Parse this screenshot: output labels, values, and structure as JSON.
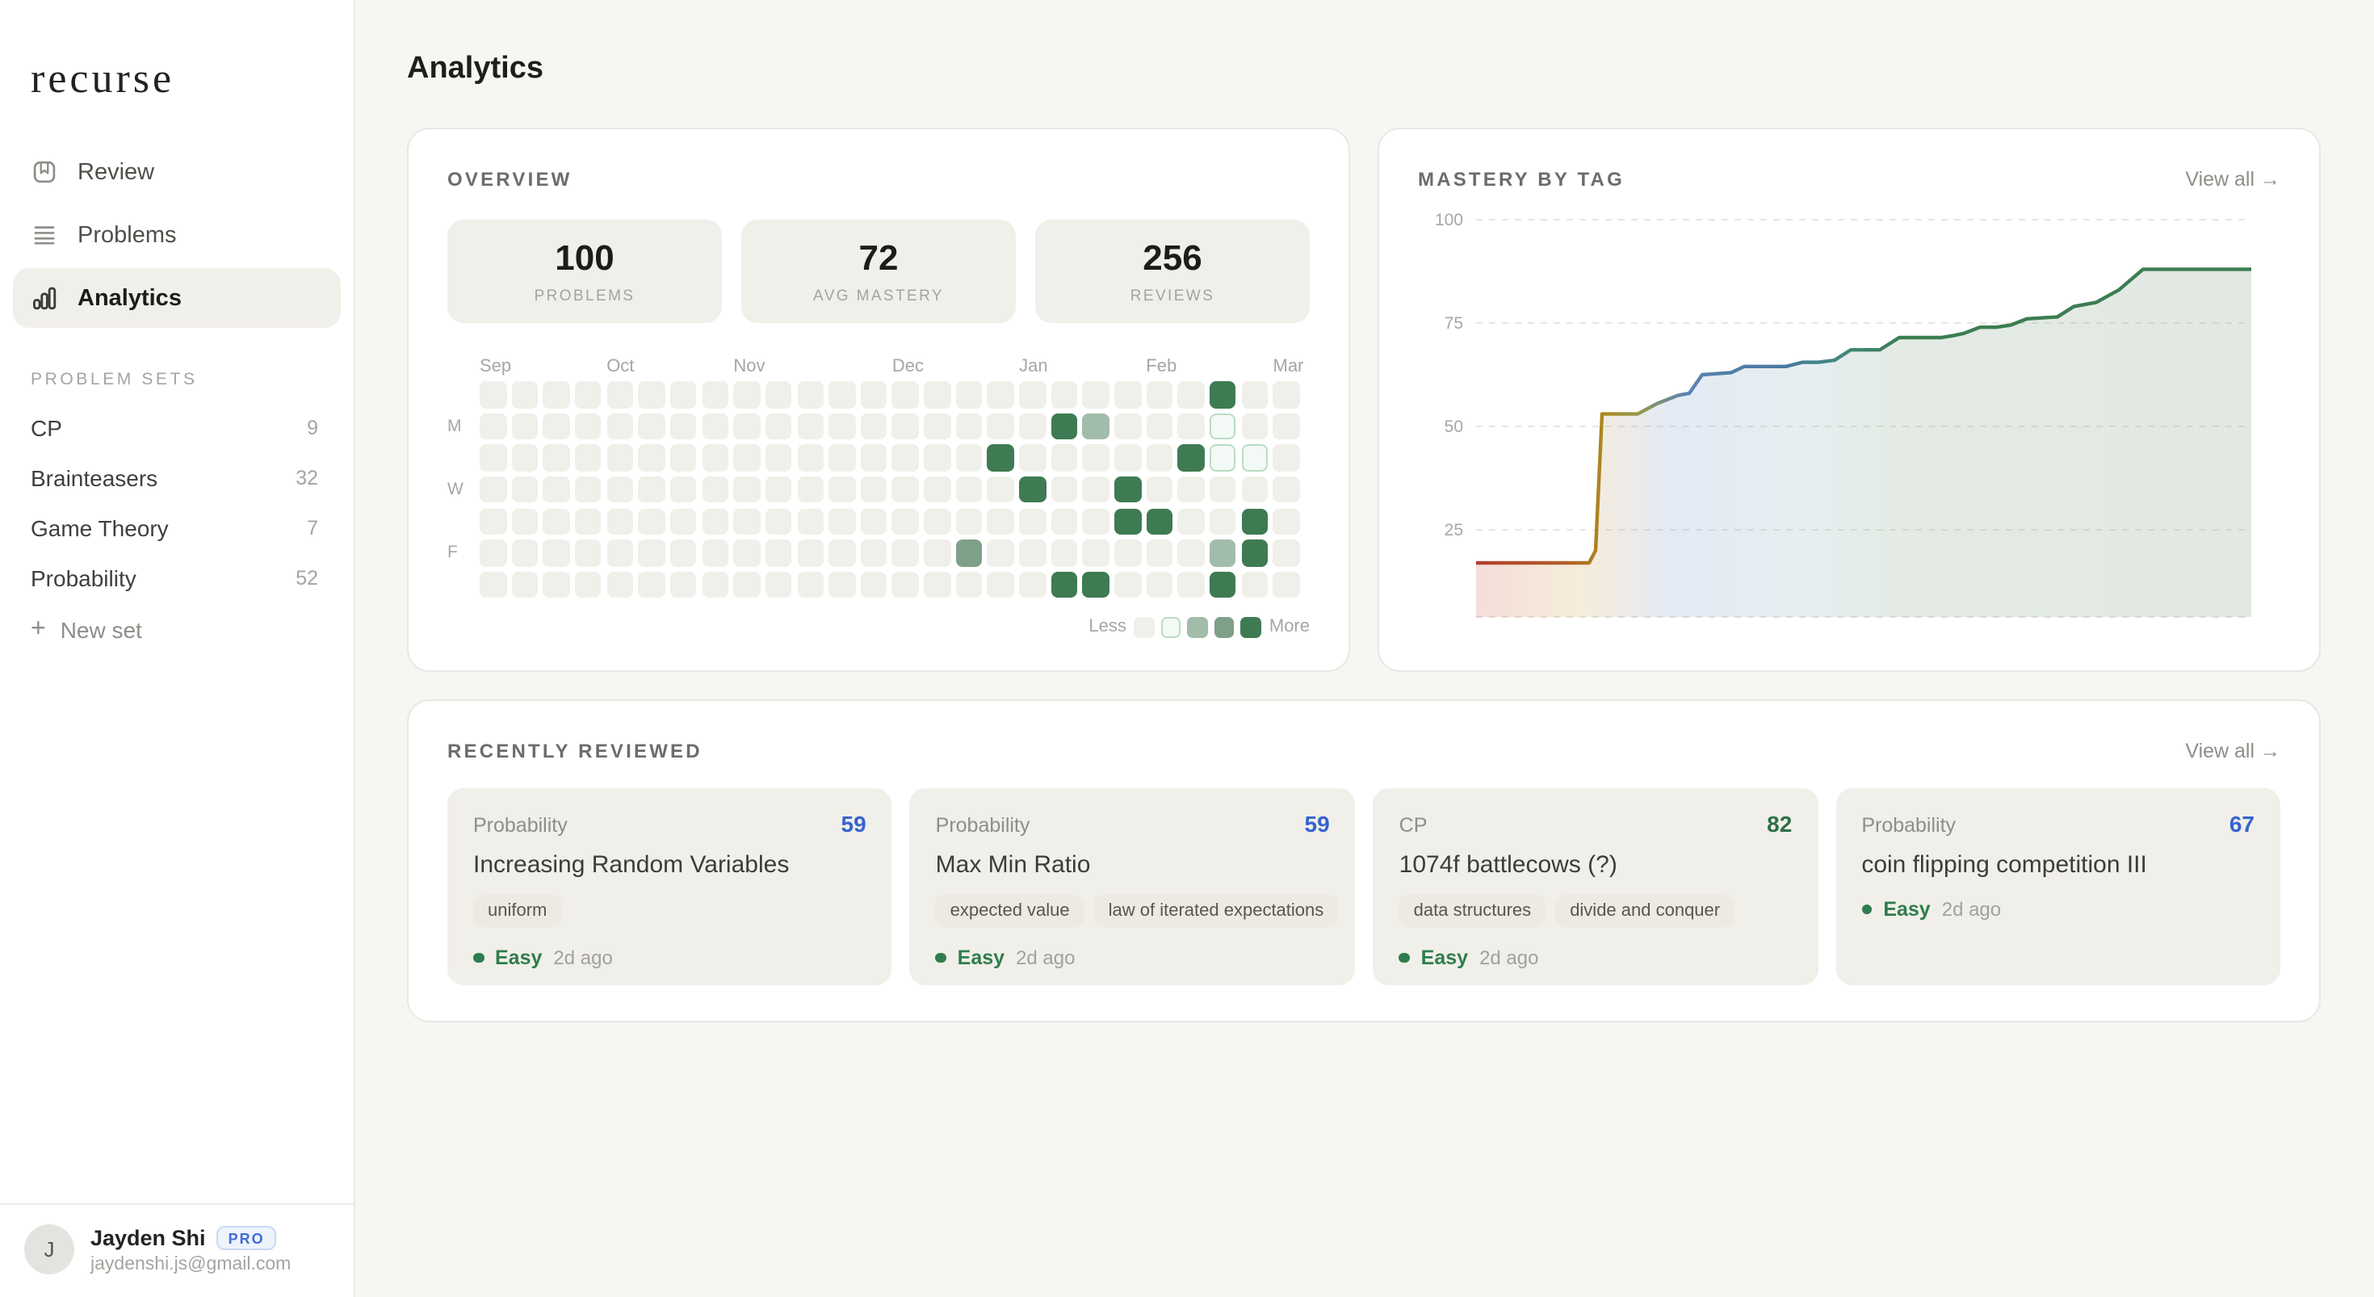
{
  "sidebar": {
    "logo": "recurse",
    "nav": [
      {
        "id": "review",
        "label": "Review",
        "icon": "bookmark-icon",
        "active": false
      },
      {
        "id": "problems",
        "label": "Problems",
        "icon": "list-icon",
        "active": false
      },
      {
        "id": "analytics",
        "label": "Analytics",
        "icon": "bar-chart-icon",
        "active": true
      }
    ],
    "sets_heading": "PROBLEM SETS",
    "sets": [
      {
        "label": "CP",
        "count": "9"
      },
      {
        "label": "Brainteasers",
        "count": "32"
      },
      {
        "label": "Game Theory",
        "count": "7"
      },
      {
        "label": "Probability",
        "count": "52"
      }
    ],
    "new_set_label": "New set",
    "user": {
      "initial": "J",
      "name": "Jayden Shi",
      "badge": "PRO",
      "email": "jaydenshi.js@gmail.com"
    }
  },
  "page": {
    "title": "Analytics"
  },
  "overview": {
    "heading": "OVERVIEW",
    "stats": [
      {
        "value": "100",
        "label": "PROBLEMS"
      },
      {
        "value": "72",
        "label": "AVG MASTERY"
      },
      {
        "value": "256",
        "label": "REVIEWS"
      }
    ],
    "heatmap": {
      "rows": 7,
      "cols": 26,
      "months": [
        {
          "label": "Sep",
          "col": 0
        },
        {
          "label": "Oct",
          "col": 4
        },
        {
          "label": "Nov",
          "col": 8
        },
        {
          "label": "Dec",
          "col": 13
        },
        {
          "label": "Jan",
          "col": 17
        },
        {
          "label": "Feb",
          "col": 21
        },
        {
          "label": "Mar",
          "col": 25
        }
      ],
      "day_labels": [
        {
          "label": "M",
          "row": 1
        },
        {
          "label": "W",
          "row": 3
        },
        {
          "label": "F",
          "row": 5
        }
      ],
      "cells": [
        [
          0,
          23,
          4
        ],
        [
          1,
          18,
          4
        ],
        [
          1,
          19,
          2
        ],
        [
          1,
          23,
          1
        ],
        [
          2,
          16,
          4
        ],
        [
          2,
          22,
          4
        ],
        [
          2,
          23,
          1
        ],
        [
          2,
          24,
          1
        ],
        [
          3,
          17,
          4
        ],
        [
          3,
          20,
          4
        ],
        [
          4,
          20,
          4
        ],
        [
          4,
          21,
          4
        ],
        [
          4,
          24,
          4
        ],
        [
          5,
          15,
          3
        ],
        [
          5,
          23,
          2
        ],
        [
          5,
          24,
          4
        ],
        [
          6,
          18,
          4
        ],
        [
          6,
          19,
          4
        ],
        [
          6,
          23,
          4
        ]
      ],
      "level_colors": {
        "level0_bg": "#f0efe9",
        "level1_bg": "#f3faf5",
        "level1_border": "#b9dcc6",
        "level2_bg": "#a2bcaa",
        "level3_bg": "#7fa088",
        "level4_bg": "#3e7b52"
      },
      "legend": {
        "less": "Less",
        "more": "More"
      }
    }
  },
  "mastery": {
    "heading": "MASTERY BY TAG",
    "view_all": "View all →",
    "chart_data": {
      "type": "area",
      "title": "Mastery by tag over time",
      "ylim": [
        0,
        100
      ],
      "yticks": [
        100,
        75,
        50,
        25
      ],
      "grid": "dashed-horizontal",
      "x_domain": [
        0,
        480
      ],
      "points": [
        [
          0,
          17
        ],
        [
          70,
          17
        ],
        [
          74,
          20
        ],
        [
          78,
          53
        ],
        [
          100,
          53
        ],
        [
          112,
          55.5
        ],
        [
          125,
          57.5
        ],
        [
          132,
          58
        ],
        [
          140,
          62.5
        ],
        [
          158,
          63
        ],
        [
          166,
          64.5
        ],
        [
          192,
          64.5
        ],
        [
          202,
          65.5
        ],
        [
          212,
          65.5
        ],
        [
          222,
          66
        ],
        [
          232,
          68.5
        ],
        [
          250,
          68.5
        ],
        [
          262,
          71.5
        ],
        [
          288,
          71.5
        ],
        [
          296,
          72
        ],
        [
          302,
          72.5
        ],
        [
          312,
          74
        ],
        [
          322,
          74
        ],
        [
          331,
          74.5
        ],
        [
          341,
          76
        ],
        [
          360,
          76.5
        ],
        [
          370,
          79
        ],
        [
          384,
          80
        ],
        [
          398,
          83
        ],
        [
          413,
          88
        ],
        [
          480,
          88
        ]
      ],
      "stroke_stops": [
        [
          "0%",
          "#b23e2d"
        ],
        [
          "12%",
          "#b2612a"
        ],
        [
          "16.5%",
          "#ab8a1e"
        ],
        [
          "21%",
          "#93984a"
        ],
        [
          "27%",
          "#5b84b2"
        ],
        [
          "40%",
          "#47799f"
        ],
        [
          "47%",
          "#41897b"
        ],
        [
          "55%",
          "#3c7d52"
        ],
        [
          "100%",
          "#3c7d52"
        ]
      ],
      "fill_stops": [
        [
          "0%",
          "rgba(200,90,70,0.20)"
        ],
        [
          "13%",
          "rgba(210,160,70,0.20)"
        ],
        [
          "25%",
          "rgba(130,160,210,0.22)"
        ],
        [
          "42%",
          "rgba(130,170,180,0.20)"
        ],
        [
          "55%",
          "rgba(140,170,145,0.24)"
        ],
        [
          "100%",
          "rgba(150,175,150,0.28)"
        ]
      ]
    }
  },
  "recent": {
    "heading": "RECENTLY REVIEWED",
    "view_all": "View all →",
    "difficulty_color": "#2e7d4c",
    "cards": [
      {
        "category": "Probability",
        "score": "59",
        "score_color": "#3563cf",
        "title": "Increasing Random Variables",
        "tags": [
          "uniform"
        ],
        "difficulty": "Easy",
        "when": "2d ago"
      },
      {
        "category": "Probability",
        "score": "59",
        "score_color": "#3563cf",
        "title": "Max Min Ratio",
        "tags": [
          "expected value",
          "law of iterated expectations"
        ],
        "difficulty": "Easy",
        "when": "2d ago"
      },
      {
        "category": "CP",
        "score": "82",
        "score_color": "#2f6e49",
        "title": "1074f battlecows (?)",
        "tags": [
          "data structures",
          "divide and conquer"
        ],
        "difficulty": "Easy",
        "when": "2d ago"
      },
      {
        "category": "Probability",
        "score": "67",
        "score_color": "#3563cf",
        "title": "coin flipping competition III",
        "tags": [],
        "difficulty": "Easy",
        "when": "2d ago"
      }
    ]
  }
}
